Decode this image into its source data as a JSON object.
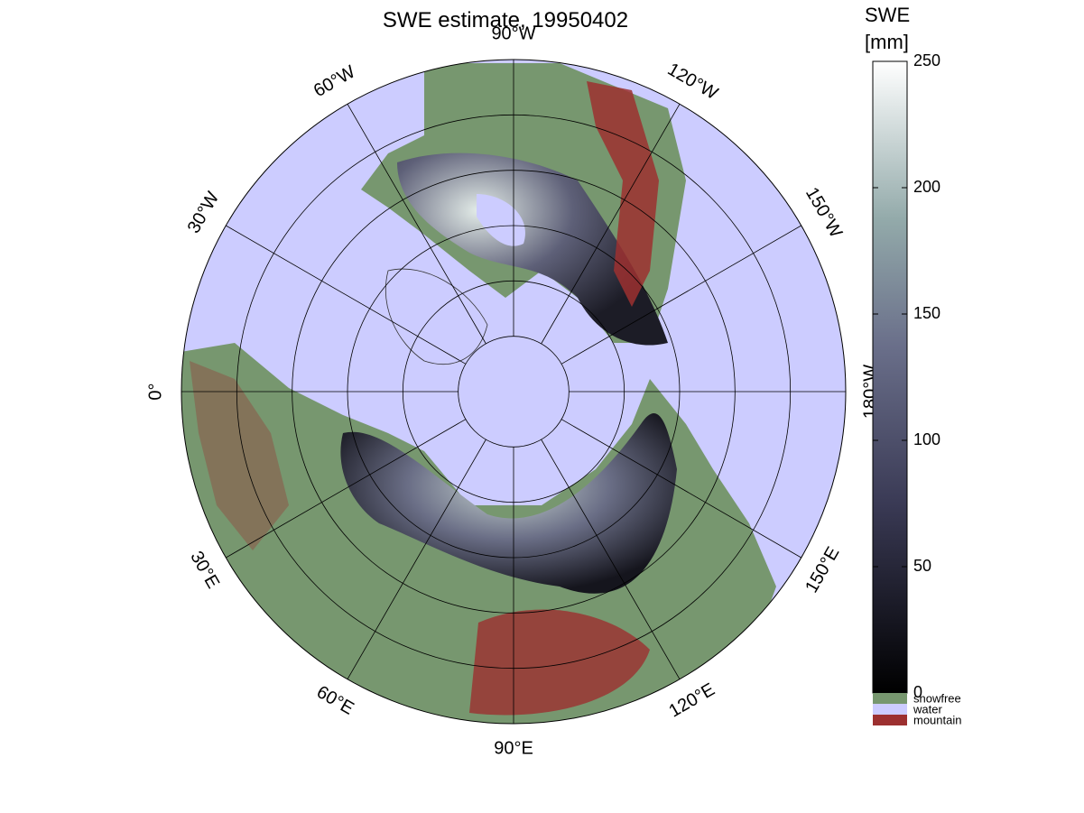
{
  "title": "SWE estimate, 19950402",
  "longitude_labels": [
    "0°",
    "30°E",
    "60°E",
    "90°E",
    "120°E",
    "150°E",
    "180°W",
    "150°W",
    "120°W",
    "90°W",
    "60°W",
    "30°W"
  ],
  "colorbar": {
    "title": [
      "SWE",
      "[mm]"
    ],
    "range": [
      0,
      250
    ],
    "ticks": [
      0,
      50,
      100,
      150,
      200,
      250
    ]
  },
  "legend": [
    {
      "name": "snowfree",
      "color": "#77976f"
    },
    {
      "name": "water",
      "color": "#ccccff"
    },
    {
      "name": "mountain",
      "color": "#9c3030"
    }
  ]
}
